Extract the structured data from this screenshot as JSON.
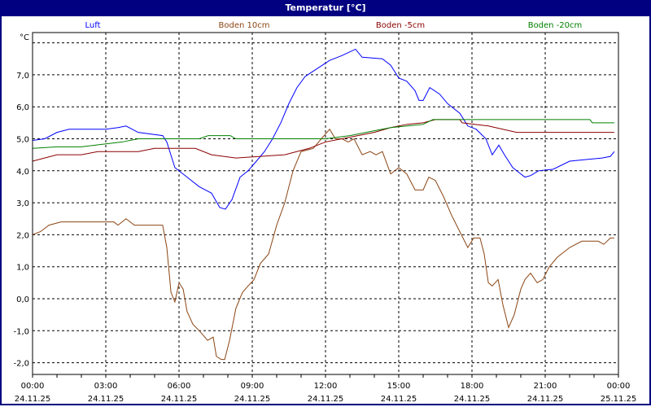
{
  "window": {
    "title": "Temperatur [°C]"
  },
  "chart_data": {
    "type": "line",
    "title": "Temperatur [°C]",
    "ylabel": "°C",
    "ylim": [
      -2.4,
      8.3
    ],
    "xlim": [
      0,
      24
    ],
    "grid": true,
    "legend_placement": "top",
    "yticks": [
      -2,
      -1,
      0,
      1,
      2,
      3,
      4,
      5,
      6,
      7,
      8
    ],
    "ytick_labels": [
      "-2,0",
      "-1,0",
      "0,0",
      "1,0",
      "2,0",
      "3,0",
      "4,0",
      "5,0",
      "6,0",
      "7,0",
      ""
    ],
    "xticks": [
      0,
      3,
      6,
      9,
      12,
      15,
      18,
      21,
      24
    ],
    "xtick_labels": [
      [
        "00:00",
        "24.11.25"
      ],
      [
        "03:00",
        "24.11.25"
      ],
      [
        "06:00",
        "24.11.25"
      ],
      [
        "09:00",
        "24.11.25"
      ],
      [
        "12:00",
        "24.11.25"
      ],
      [
        "15:00",
        "24.11.25"
      ],
      [
        "18:00",
        "24.11.25"
      ],
      [
        "21:00",
        "24.11.25"
      ],
      [
        "00:00",
        "25.11.25"
      ]
    ],
    "series": [
      {
        "name": "Luft",
        "color": "#0000ff",
        "points": [
          [
            0,
            4.95
          ],
          [
            0.5,
            5.0
          ],
          [
            1,
            5.2
          ],
          [
            1.5,
            5.3
          ],
          [
            2,
            5.3
          ],
          [
            2.5,
            5.3
          ],
          [
            3,
            5.3
          ],
          [
            3.5,
            5.35
          ],
          [
            3.83,
            5.4
          ],
          [
            4.33,
            5.2
          ],
          [
            5.33,
            5.1
          ],
          [
            5.5,
            4.9
          ],
          [
            5.83,
            4.1
          ],
          [
            6.33,
            3.8
          ],
          [
            6.83,
            3.5
          ],
          [
            7.33,
            3.3
          ],
          [
            7.67,
            2.85
          ],
          [
            7.9,
            2.8
          ],
          [
            8.17,
            3.1
          ],
          [
            8.5,
            3.8
          ],
          [
            8.83,
            4.0
          ],
          [
            9.17,
            4.3
          ],
          [
            9.5,
            4.6
          ],
          [
            9.83,
            5.0
          ],
          [
            10.17,
            5.5
          ],
          [
            10.5,
            6.1
          ],
          [
            10.83,
            6.6
          ],
          [
            11.17,
            6.95
          ],
          [
            11.67,
            7.2
          ],
          [
            12.17,
            7.45
          ],
          [
            12.67,
            7.6
          ],
          [
            13.23,
            7.8
          ],
          [
            13.5,
            7.55
          ],
          [
            14.33,
            7.5
          ],
          [
            14.67,
            7.3
          ],
          [
            15,
            6.9
          ],
          [
            15.33,
            6.8
          ],
          [
            15.67,
            6.5
          ],
          [
            15.83,
            6.2
          ],
          [
            16,
            6.2
          ],
          [
            16.27,
            6.6
          ],
          [
            16.67,
            6.4
          ],
          [
            17,
            6.1
          ],
          [
            17.5,
            5.8
          ],
          [
            17.83,
            5.4
          ],
          [
            18.17,
            5.3
          ],
          [
            18.57,
            5.0
          ],
          [
            18.83,
            4.5
          ],
          [
            19.1,
            4.8
          ],
          [
            19.33,
            4.5
          ],
          [
            19.67,
            4.1
          ],
          [
            20.17,
            3.8
          ],
          [
            20.4,
            3.85
          ],
          [
            20.73,
            4.0
          ],
          [
            21.33,
            4.05
          ],
          [
            22,
            4.3
          ],
          [
            22.67,
            4.35
          ],
          [
            23.33,
            4.4
          ],
          [
            23.67,
            4.45
          ],
          [
            23.83,
            4.6
          ]
        ]
      },
      {
        "name": "Boden 10cm",
        "color": "#8b4513",
        "points": [
          [
            0,
            2.0
          ],
          [
            0.33,
            2.1
          ],
          [
            0.67,
            2.3
          ],
          [
            1.17,
            2.4
          ],
          [
            3.33,
            2.4
          ],
          [
            3.5,
            2.3
          ],
          [
            3.83,
            2.5
          ],
          [
            4.17,
            2.3
          ],
          [
            5.33,
            2.3
          ],
          [
            5.5,
            1.6
          ],
          [
            5.67,
            0.2
          ],
          [
            5.83,
            -0.1
          ],
          [
            6,
            0.5
          ],
          [
            6.17,
            0.3
          ],
          [
            6.33,
            -0.4
          ],
          [
            6.57,
            -0.8
          ],
          [
            6.83,
            -1.0
          ],
          [
            7.17,
            -1.3
          ],
          [
            7.4,
            -1.2
          ],
          [
            7.53,
            -1.8
          ],
          [
            7.73,
            -1.9
          ],
          [
            7.87,
            -1.9
          ],
          [
            8.07,
            -1.3
          ],
          [
            8.33,
            -0.3
          ],
          [
            8.6,
            0.2
          ],
          [
            8.83,
            0.4
          ],
          [
            9.07,
            0.6
          ],
          [
            9.33,
            1.1
          ],
          [
            9.67,
            1.4
          ],
          [
            10,
            2.3
          ],
          [
            10.33,
            3.0
          ],
          [
            10.67,
            4.0
          ],
          [
            11,
            4.6
          ],
          [
            11.5,
            4.7
          ],
          [
            11.83,
            5.0
          ],
          [
            12.17,
            5.3
          ],
          [
            12.4,
            5.0
          ],
          [
            12.67,
            5.0
          ],
          [
            12.93,
            4.9
          ],
          [
            13.17,
            5.0
          ],
          [
            13.5,
            4.5
          ],
          [
            13.83,
            4.6
          ],
          [
            14.07,
            4.5
          ],
          [
            14.33,
            4.6
          ],
          [
            14.67,
            3.9
          ],
          [
            15,
            4.1
          ],
          [
            15.33,
            3.9
          ],
          [
            15.67,
            3.4
          ],
          [
            16,
            3.4
          ],
          [
            16.23,
            3.8
          ],
          [
            16.5,
            3.7
          ],
          [
            16.83,
            3.2
          ],
          [
            17.17,
            2.6
          ],
          [
            17.5,
            2.1
          ],
          [
            17.83,
            1.6
          ],
          [
            18.07,
            1.9
          ],
          [
            18.33,
            1.9
          ],
          [
            18.5,
            1.4
          ],
          [
            18.67,
            0.5
          ],
          [
            18.83,
            0.4
          ],
          [
            19.07,
            0.6
          ],
          [
            19.27,
            -0.2
          ],
          [
            19.5,
            -0.9
          ],
          [
            19.73,
            -0.5
          ],
          [
            20,
            0.3
          ],
          [
            20.17,
            0.6
          ],
          [
            20.4,
            0.8
          ],
          [
            20.67,
            0.5
          ],
          [
            20.9,
            0.6
          ],
          [
            21.17,
            1.0
          ],
          [
            21.5,
            1.3
          ],
          [
            22,
            1.6
          ],
          [
            22.5,
            1.8
          ],
          [
            23.17,
            1.8
          ],
          [
            23.4,
            1.7
          ],
          [
            23.67,
            1.9
          ],
          [
            23.83,
            1.9
          ]
        ]
      },
      {
        "name": "Boden -5cm",
        "color": "#8b0000",
        "points": [
          [
            0,
            4.3
          ],
          [
            1,
            4.5
          ],
          [
            2,
            4.5
          ],
          [
            2.67,
            4.6
          ],
          [
            4.33,
            4.6
          ],
          [
            5,
            4.7
          ],
          [
            6.67,
            4.7
          ],
          [
            7.33,
            4.5
          ],
          [
            8.33,
            4.4
          ],
          [
            10.33,
            4.5
          ],
          [
            11.33,
            4.7
          ],
          [
            12,
            4.9
          ],
          [
            12.67,
            5.0
          ],
          [
            14,
            5.2
          ],
          [
            14.67,
            5.35
          ],
          [
            15.33,
            5.45
          ],
          [
            16,
            5.5
          ],
          [
            16.5,
            5.6
          ],
          [
            17.5,
            5.6
          ],
          [
            17.6,
            5.5
          ],
          [
            18.67,
            5.4
          ],
          [
            19.83,
            5.2
          ],
          [
            23.83,
            5.2
          ]
        ]
      },
      {
        "name": "Boden -20cm",
        "color": "#008000",
        "points": [
          [
            0,
            4.7
          ],
          [
            1,
            4.75
          ],
          [
            2,
            4.75
          ],
          [
            3.67,
            4.9
          ],
          [
            4.33,
            5.0
          ],
          [
            6.83,
            5.0
          ],
          [
            7.2,
            5.1
          ],
          [
            8.1,
            5.1
          ],
          [
            8.33,
            5.0
          ],
          [
            12,
            5.0
          ],
          [
            13,
            5.1
          ],
          [
            14,
            5.25
          ],
          [
            14.67,
            5.35
          ],
          [
            16,
            5.45
          ],
          [
            16.4,
            5.6
          ],
          [
            22.83,
            5.6
          ],
          [
            22.93,
            5.5
          ],
          [
            23.83,
            5.5
          ]
        ]
      }
    ]
  }
}
